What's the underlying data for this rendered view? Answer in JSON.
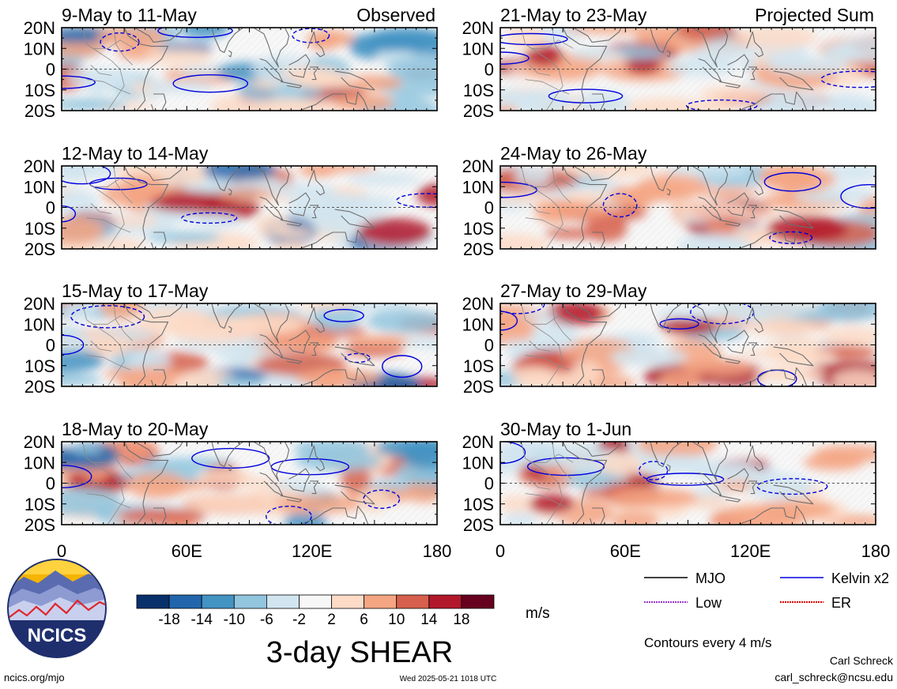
{
  "chart_data": {
    "type": "heatmap",
    "variable": "3-day SHEAR",
    "units": "m/s",
    "columns": [
      {
        "header": "Observed",
        "panels": [
          {
            "title": "9-May to 11-May"
          },
          {
            "title": "12-May to 14-May"
          },
          {
            "title": "15-May to 17-May"
          },
          {
            "title": "18-May to 20-May"
          }
        ]
      },
      {
        "header": "Projected Sum",
        "panels": [
          {
            "title": "21-May to 23-May"
          },
          {
            "title": "24-May to 26-May"
          },
          {
            "title": "27-May to 29-May"
          },
          {
            "title": "30-May to 1-Jun"
          }
        ]
      }
    ],
    "x_ticks": [
      "0",
      "60E",
      "120E",
      "180"
    ],
    "x_range": [
      0,
      180
    ],
    "y_ticks": [
      "20N",
      "10N",
      "0",
      "10S",
      "20S"
    ],
    "y_range": [
      -20,
      20
    ],
    "colorbar": {
      "bounds": [
        -18,
        -14,
        -10,
        -6,
        -2,
        2,
        6,
        10,
        14,
        18
      ],
      "tick_labels": [
        "-18",
        "-14",
        "-10",
        "-6",
        "-2",
        "2",
        "6",
        "10",
        "14",
        "18"
      ],
      "colors": [
        "#08306b",
        "#2166ac",
        "#4393c3",
        "#92c5de",
        "#d1e5f0",
        "#f7f7f7",
        "#fddbc7",
        "#f4a582",
        "#d6604d",
        "#b2182b",
        "#67001f"
      ],
      "units": "m/s"
    },
    "legend": {
      "entries": [
        {
          "label": "MJO",
          "color": "#000000"
        },
        {
          "label": "Kelvin x2",
          "color": "#0000dd"
        },
        {
          "label": "Low",
          "color": "#9933cc"
        },
        {
          "label": "ER",
          "color": "#dd0000"
        }
      ],
      "note": "Contours every 4 m/s"
    }
  },
  "footer": {
    "logo_text": "NCICS",
    "url": "ncics.org/mjo",
    "timestamp": "Wed 2025-05-21 1018 UTC",
    "author": "Carl Schreck",
    "email": "carl_schreck@ncsu.edu"
  }
}
